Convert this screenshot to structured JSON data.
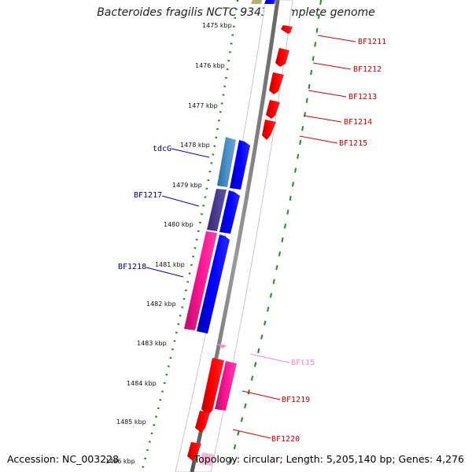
{
  "title": "Bacteroides fragilis NCTC 9343, complete genome",
  "footer": {
    "accession": "Accession: NC_003228",
    "stats": "Topology: circular; Length: 5,205,140 bp; Genes: 4,276"
  },
  "colors": {
    "forward_gene": "#0000ff",
    "reverse_gene": "#ff0000",
    "forward_label": "#00008b",
    "reverse_label": "#cc0000",
    "pseudo_label": "#ff88cc",
    "tick": "#228b22"
  },
  "kbp_labels": [
    "1475 kbp",
    "1476 kbp",
    "1477 kbp",
    "1478 kbp",
    "1479 kbp",
    "1480 kbp",
    "1481 kbp",
    "1482 kbp",
    "1483 kbp",
    "1484 kbp",
    "1485 kbp",
    "1486 kbp"
  ],
  "gene_labels": [
    {
      "id": "tdcG",
      "text": "tdcG",
      "strand": "forward"
    },
    {
      "id": "BF1217",
      "text": "BF1217",
      "strand": "forward"
    },
    {
      "id": "BF1218",
      "text": "BF1218",
      "strand": "forward"
    },
    {
      "id": "BF1211",
      "text": "BF1211",
      "strand": "reverse"
    },
    {
      "id": "BF1212",
      "text": "BF1212",
      "strand": "reverse"
    },
    {
      "id": "BF1213",
      "text": "BF1213",
      "strand": "reverse"
    },
    {
      "id": "BF1214",
      "text": "BF1214",
      "strand": "reverse"
    },
    {
      "id": "BF1215",
      "text": "BF1215",
      "strand": "reverse"
    },
    {
      "id": "BFt15",
      "text": "BFt15",
      "strand": "pseudo"
    },
    {
      "id": "BF1219",
      "text": "BF1219",
      "strand": "reverse"
    },
    {
      "id": "BF1220",
      "text": "BF1220",
      "strand": "reverse"
    }
  ]
}
